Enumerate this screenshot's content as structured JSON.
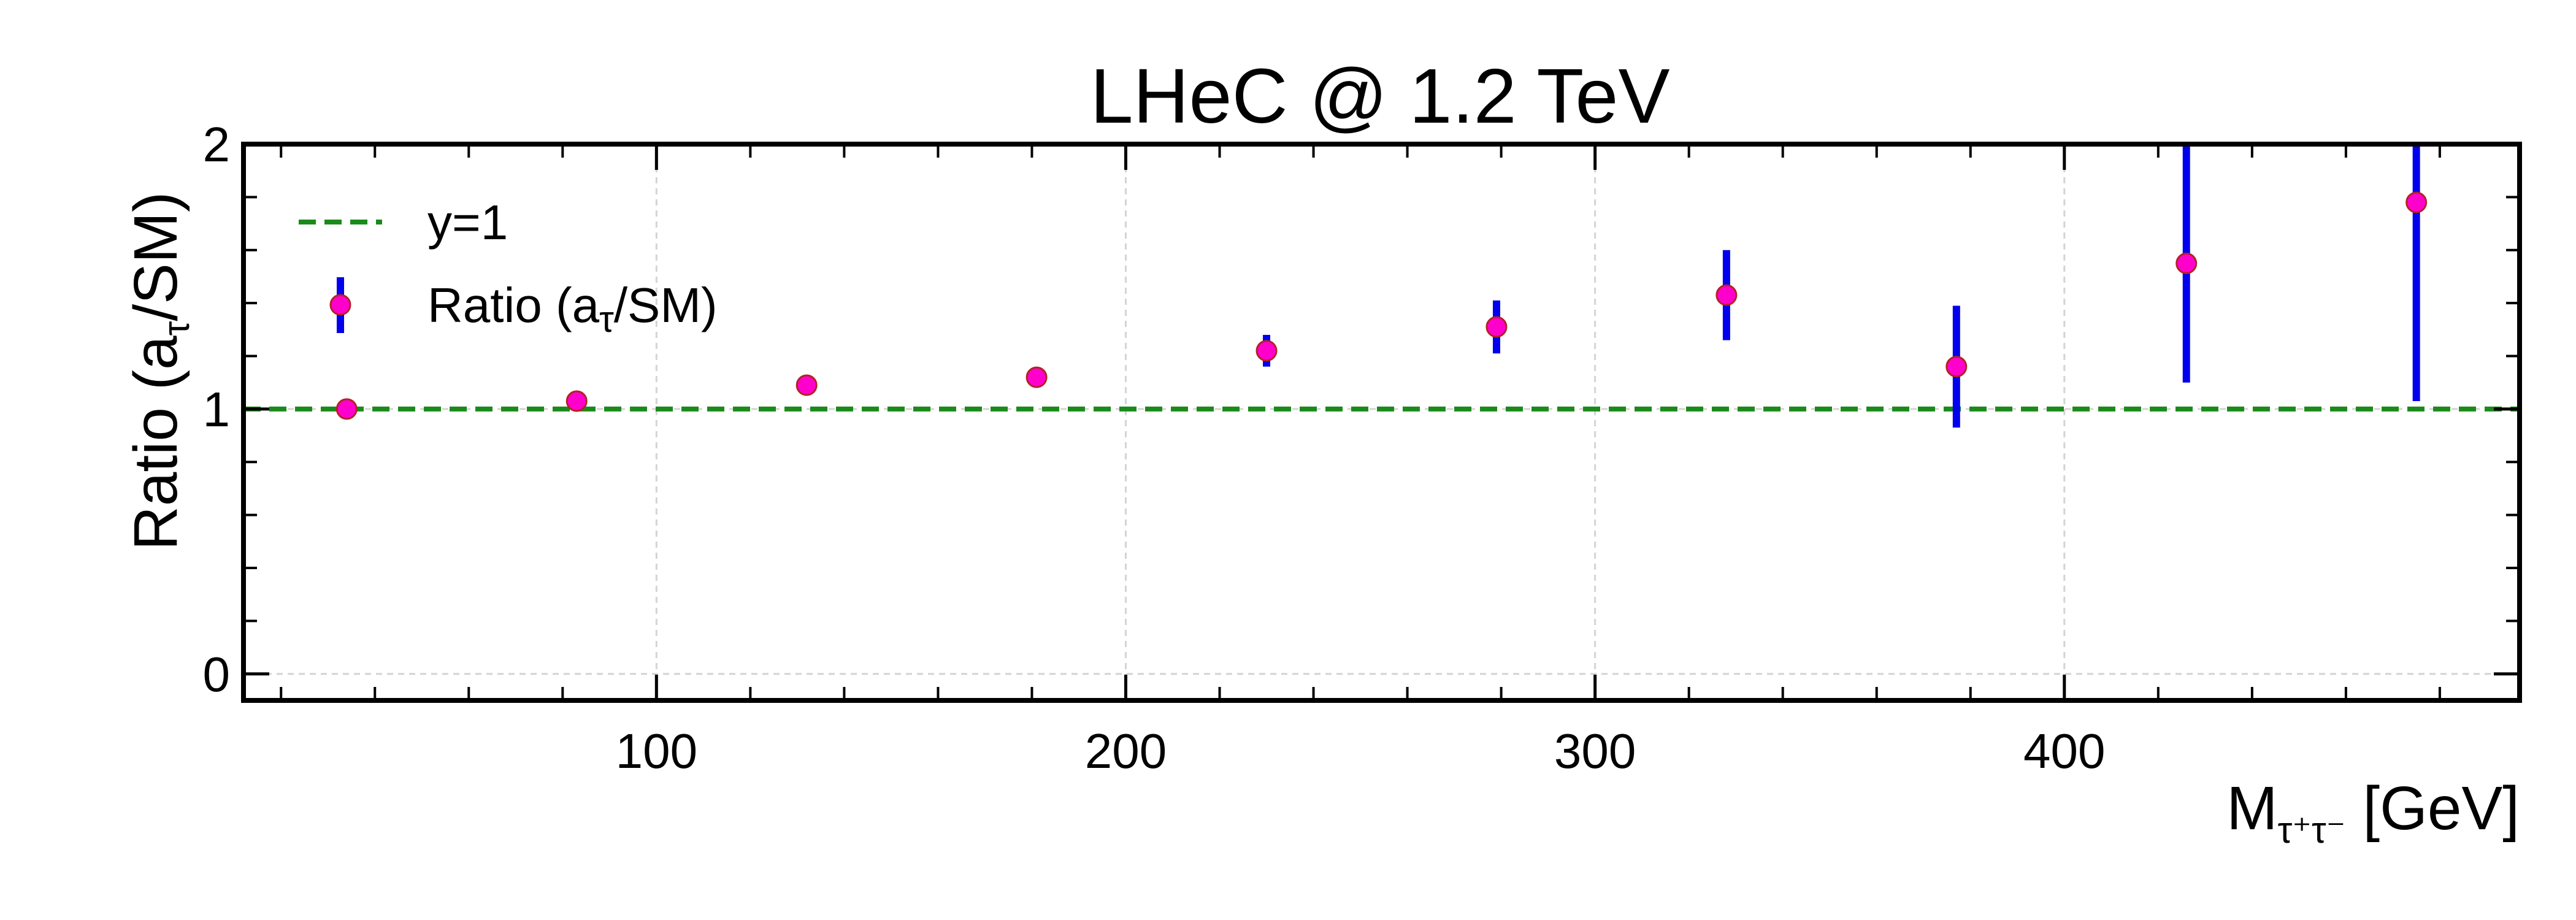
{
  "chart_data": {
    "type": "scatter",
    "title": "LHeC @ 1.2 TeV",
    "xlabel": {
      "main": "M",
      "sub": "τ⁺τ⁻",
      "unit": "[GeV]"
    },
    "ylabel": {
      "main": "Ratio (a",
      "sub": "τ",
      "rest": "/SM)"
    },
    "xlim": [
      12,
      497
    ],
    "ylim": [
      -0.1,
      2
    ],
    "xticks": [
      100,
      200,
      300,
      400
    ],
    "xtick_labels": [
      "100",
      "200",
      "300",
      "400"
    ],
    "yticks": [
      0,
      1,
      2
    ],
    "ytick_labels": [
      "0",
      "1",
      "2"
    ],
    "grid": true,
    "legend_position": "top-left",
    "series": [
      {
        "name": "Ratio (a_τ/SM)",
        "legend_main": "Ratio (a",
        "legend_sub": "τ",
        "legend_rest": "/SM)",
        "kind": "errorbar",
        "marker_color": "#ff00cc",
        "marker_edge": "#b22222",
        "error_color": "#0000ee",
        "x": [
          34,
          83,
          132,
          181,
          230,
          279,
          328,
          377,
          426,
          475
        ],
        "y": [
          1.0,
          1.03,
          1.09,
          1.12,
          1.22,
          1.31,
          1.43,
          1.16,
          1.55,
          1.78
        ],
        "yerr": [
          0.0,
          0.0,
          0.0,
          0.02,
          0.06,
          0.1,
          0.17,
          0.23,
          0.45,
          0.75
        ]
      },
      {
        "name": "y=1",
        "kind": "hline",
        "y": 1,
        "color": "#1a8a1a",
        "style": "dashed"
      }
    ]
  }
}
